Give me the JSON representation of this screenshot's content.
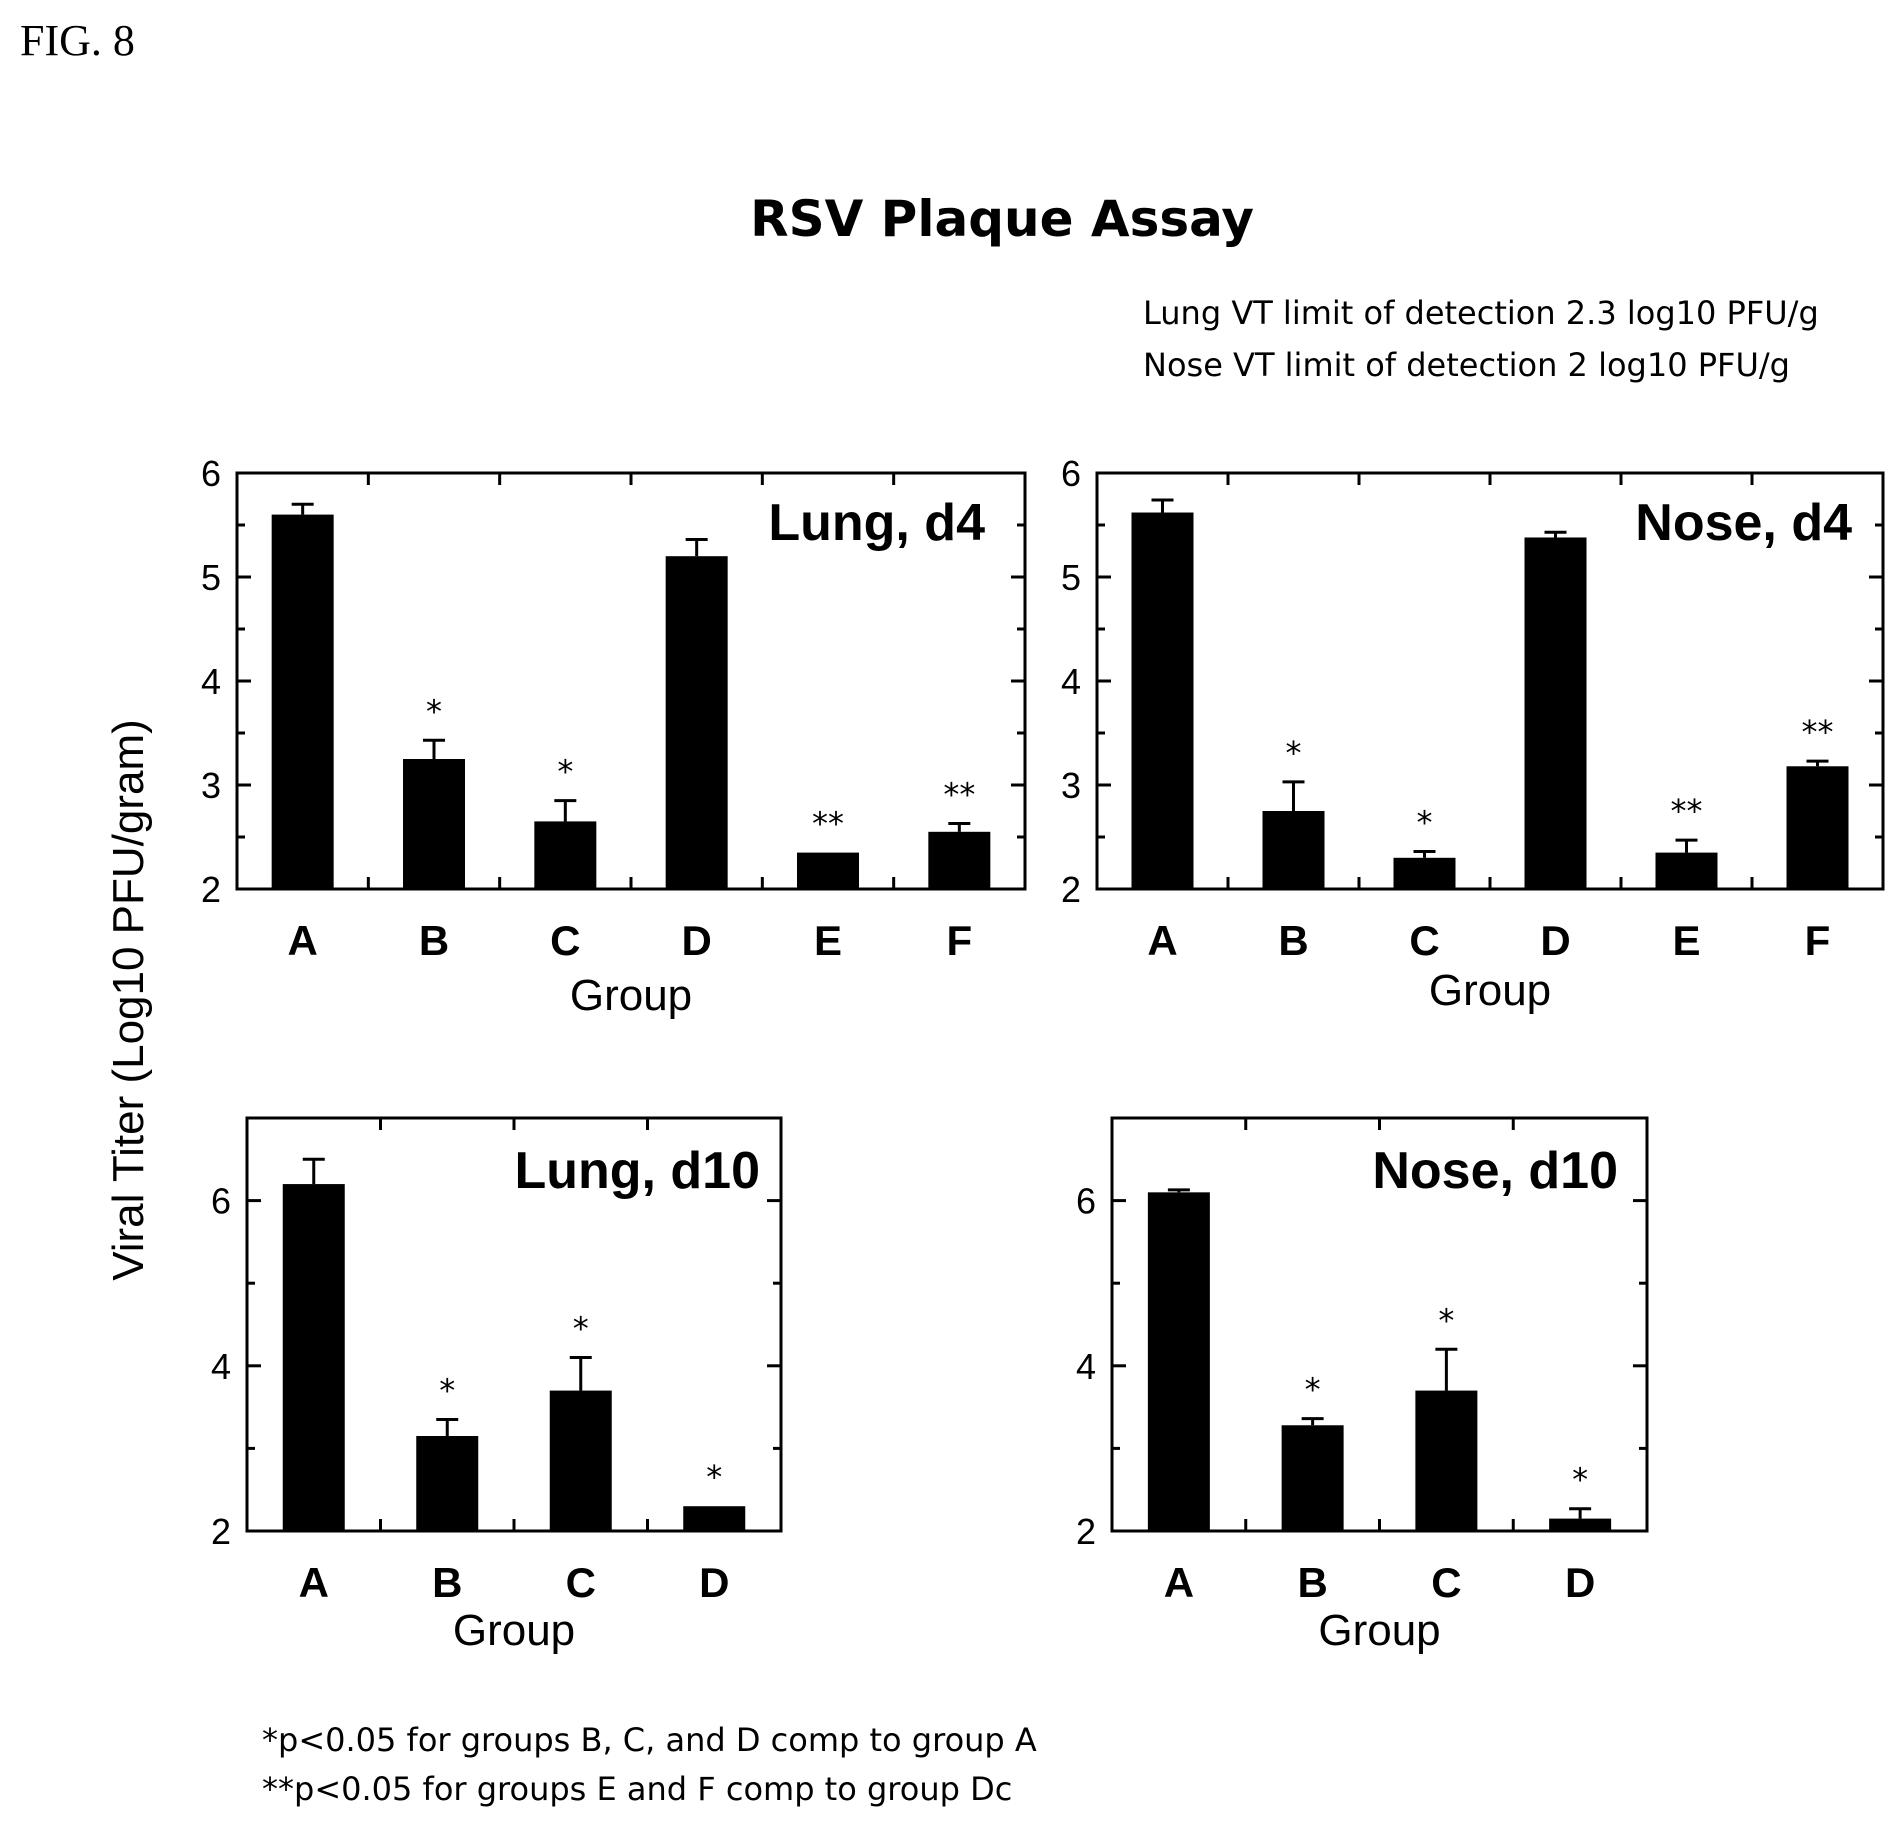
{
  "figure_label": "FIG. 8",
  "title": "RSV Plaque Assay",
  "notes": [
    "Lung VT limit of detection 2.3 log10 PFU/g",
    "Nose VT limit of detection 2 log10 PFU/g"
  ],
  "ylabel": "Viral Titer (Log10 PFU/gram)",
  "footnotes": [
    "*p<0.05 for groups B, C, and D comp to group A",
    "**p<0.05 for groups E and F comp to group Dc"
  ],
  "chart_data": [
    {
      "type": "bar",
      "title": "Lung, d4",
      "xlabel": "Group",
      "ylabel": "Viral Titer (Log10 PFU/gram)",
      "categories": [
        "A",
        "B",
        "C",
        "D",
        "E",
        "F"
      ],
      "values": [
        5.6,
        3.25,
        2.65,
        5.2,
        2.35,
        2.55
      ],
      "error": [
        0.1,
        0.18,
        0.2,
        0.16,
        0.0,
        0.08
      ],
      "significance": [
        "",
        "*",
        "*",
        "",
        "**",
        "**"
      ],
      "ylim": [
        2,
        6
      ],
      "yticks": [
        2,
        3,
        4,
        5,
        6
      ]
    },
    {
      "type": "bar",
      "title": "Nose, d4",
      "xlabel": "Group",
      "ylabel": "Viral Titer (Log10 PFU/gram)",
      "categories": [
        "A",
        "B",
        "C",
        "D",
        "E",
        "F"
      ],
      "values": [
        5.62,
        2.75,
        2.3,
        5.38,
        2.35,
        3.18
      ],
      "error": [
        0.12,
        0.28,
        0.06,
        0.05,
        0.12,
        0.05
      ],
      "significance": [
        "",
        "*",
        "*",
        "",
        "**",
        "**"
      ],
      "ylim": [
        2,
        6
      ],
      "yticks": [
        2,
        3,
        4,
        5,
        6
      ]
    },
    {
      "type": "bar",
      "title": "Lung, d10",
      "xlabel": "Group",
      "ylabel": "Viral Titer (Log10 PFU/gram)",
      "categories": [
        "A",
        "B",
        "C",
        "D"
      ],
      "values": [
        6.2,
        3.15,
        3.7,
        2.3
      ],
      "error": [
        0.3,
        0.2,
        0.4,
        0.0
      ],
      "significance": [
        "",
        "*",
        "*",
        "*"
      ],
      "ylim": [
        2,
        7
      ],
      "yticks": [
        2,
        4,
        6
      ]
    },
    {
      "type": "bar",
      "title": "Nose, d10",
      "xlabel": "Group",
      "ylabel": "Viral Titer (Log10 PFU/gram)",
      "categories": [
        "A",
        "B",
        "C",
        "D"
      ],
      "values": [
        6.1,
        3.28,
        3.7,
        2.15
      ],
      "error": [
        0.03,
        0.08,
        0.5,
        0.12
      ],
      "significance": [
        "",
        "*",
        "*",
        "*"
      ],
      "ylim": [
        2,
        7
      ],
      "yticks": [
        2,
        4,
        6
      ]
    }
  ]
}
